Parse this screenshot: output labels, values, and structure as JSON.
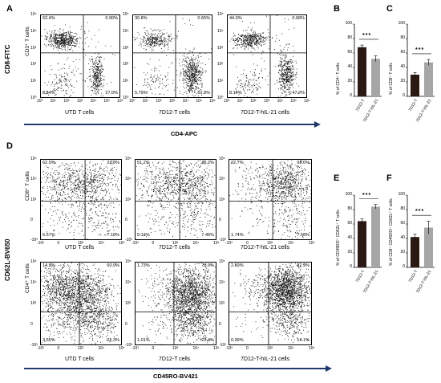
{
  "panel_labels": {
    "A": "A",
    "B": "B",
    "C": "C",
    "D": "D",
    "E": "E",
    "F": "F"
  },
  "panel_a": {
    "y_axis_title": "CD8-FITC",
    "x_axis_title": "CD4-APC",
    "plot_ylabel": "CD3⁺ T cells",
    "plots": [
      {
        "sample": "UTD T cells",
        "q_ul": "63.4%",
        "q_ur": "0.90%",
        "q_ll": "8.64%",
        "q_lr": "27.0%"
      },
      {
        "sample": "7D12-T cells",
        "q_ul": "30.8%",
        "q_ur": "0.65%",
        "q_ll": "5.79%",
        "q_lr": "62.8%"
      },
      {
        "sample": "7D12-T-hIL-21 cells",
        "q_ul": "44.0%",
        "q_ur": "0.68%",
        "q_ll": "8.14%",
        "q_lr": "47.2%"
      }
    ]
  },
  "panel_d": {
    "y_axis_title": "CD62L-BV650",
    "x_axis_title": "CD45RO-BV421",
    "row_ylabels": [
      "CD8⁺ T cells",
      "CD4⁺ T cells"
    ],
    "rows": [
      [
        {
          "sample": "UTD T cells",
          "q_ul": "62.5%",
          "q_ur": "23.8%",
          "q_ll": "6.57%",
          "q_lr": "7.18%"
        },
        {
          "sample": "7D12-T cells",
          "q_ul": "51.2%",
          "q_ur": "36.2%",
          "q_ll": "5.13%",
          "q_lr": "7.46%"
        },
        {
          "sample": "7D12-T-hIL-21 cells",
          "q_ul": "22.7%",
          "q_ur": "68.0%",
          "q_ll": "1.74%",
          "q_lr": "7.56%"
        }
      ],
      [
        {
          "sample": "UTD T cells",
          "q_ul": "14.3%",
          "q_ur": "60.9%",
          "q_ll": "3.55%",
          "q_lr": "21.3%"
        },
        {
          "sample": "7D12-T cells",
          "q_ul": "1.73%",
          "q_ur": "73.9%",
          "q_ll": "1.01%",
          "q_lr": "23.4%"
        },
        {
          "sample": "7D12-T-hIL-21 cells",
          "q_ul": "2.59%",
          "q_ur": "82.9%",
          "q_ll": "0.39%",
          "q_lr": "14.1%"
        }
      ]
    ]
  },
  "flow_ticks": {
    "a_x": [
      "10⁰",
      "10¹",
      "10²",
      "10³",
      "10⁴",
      "10⁵",
      "10⁶"
    ],
    "a_y": [
      "10⁵",
      "10⁴",
      "10³",
      "10²",
      "10¹",
      "10⁰"
    ],
    "d_x": [
      "-10³",
      "0",
      "10³",
      "10⁴",
      "10⁵"
    ],
    "d_y": [
      "10⁵",
      "10⁴",
      "10³",
      "0",
      "-10³"
    ]
  },
  "chart_data": [
    {
      "type": "bar",
      "panel": "B",
      "categories": [
        "7D12-T",
        "7D12-T-hIL-21"
      ],
      "values": [
        68,
        52
      ],
      "errors": [
        3,
        4
      ],
      "ylabel": "% of CD4⁺ T cells",
      "ylim": [
        0,
        100
      ],
      "yticks": [
        "0",
        "20",
        "40",
        "60",
        "80",
        "100"
      ],
      "significance": "***",
      "bar_colors": [
        "#2b1a14",
        "#a6a6a6"
      ]
    },
    {
      "type": "bar",
      "panel": "C",
      "categories": [
        "7D12-T",
        "7D12-T-hIL-21"
      ],
      "values": [
        30,
        47
      ],
      "errors": [
        3,
        4
      ],
      "ylabel": "% of CD8⁺ T cells",
      "ylim": [
        0,
        100
      ],
      "yticks": [
        "0",
        "20",
        "40",
        "60",
        "80",
        "100"
      ],
      "significance": "***",
      "bar_colors": [
        "#2b1a14",
        "#a6a6a6"
      ]
    },
    {
      "type": "bar",
      "panel": "E",
      "categories": [
        "7D12-T",
        "7D12-T-hIL-21"
      ],
      "values": [
        64,
        84
      ],
      "errors": [
        3,
        3
      ],
      "ylabel": "% of CD45RO⁺ CD62L⁺ T cells",
      "ylim": [
        0,
        100
      ],
      "yticks": [
        "0",
        "20",
        "40",
        "60",
        "80",
        "100"
      ],
      "significance": "***",
      "bar_colors": [
        "#2b1a14",
        "#a6a6a6"
      ]
    },
    {
      "type": "bar",
      "panel": "F",
      "categories": [
        "7D12-T",
        "7D12-T-hIL-21"
      ],
      "values": [
        42,
        55
      ],
      "errors": [
        4,
        9
      ],
      "ylabel": "% of CD8⁺ CD45RO⁺ CD62L⁺ T cells",
      "ylim": [
        0,
        100
      ],
      "yticks": [
        "0",
        "20",
        "40",
        "60",
        "80",
        "100"
      ],
      "significance": "***",
      "bar_colors": [
        "#2b1a14",
        "#a6a6a6"
      ]
    }
  ],
  "colors": {
    "axis_arrow": "#1f3a6b",
    "dots": "#111111",
    "bar_dark": "#2b1a14",
    "bar_light": "#a6a6a6"
  }
}
